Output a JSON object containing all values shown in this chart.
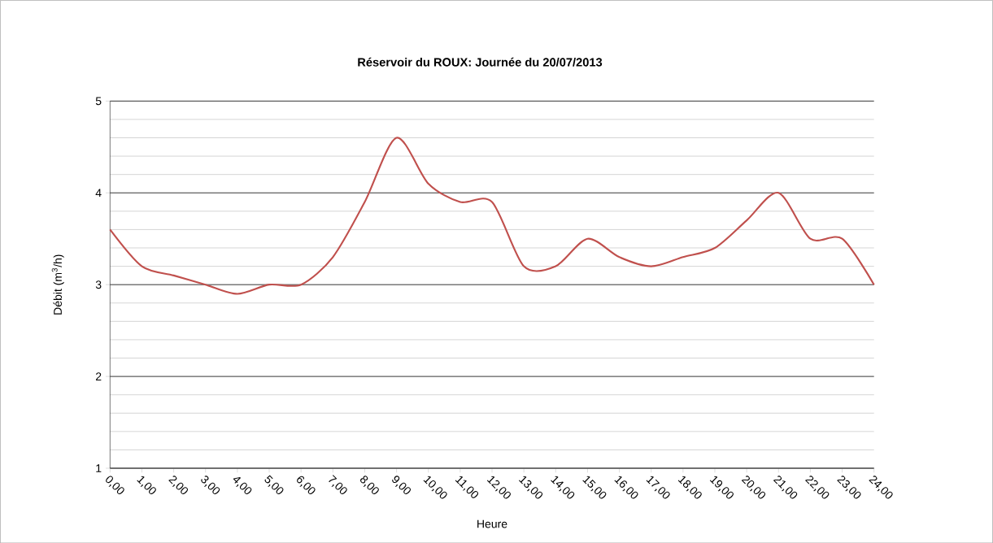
{
  "chart_data": {
    "type": "line",
    "title": "Réservoir du ROUX:  Journée du 20/07/2013",
    "xlabel": "Heure",
    "ylabel": "Débit (m$^{3}$/h)",
    "x": [
      0,
      1,
      2,
      3,
      4,
      5,
      6,
      7,
      8,
      9,
      10,
      11,
      12,
      13,
      14,
      15,
      16,
      17,
      18,
      19,
      20,
      21,
      22,
      23,
      24
    ],
    "series": [
      {
        "color": "#c0504d",
        "values": [
          3.6,
          3.2,
          3.1,
          3.0,
          2.9,
          3.0,
          3.0,
          3.3,
          3.9,
          4.6,
          4.1,
          3.9,
          3.9,
          3.2,
          3.2,
          3.5,
          3.3,
          3.2,
          3.3,
          3.4,
          3.7,
          4.0,
          3.5,
          3.5,
          3.0
        ]
      }
    ],
    "xlim": [
      0,
      24
    ],
    "ylim": [
      1,
      5
    ],
    "xticks": [
      {
        "value": 0,
        "label": "0,00"
      },
      {
        "value": 1,
        "label": "1,00"
      },
      {
        "value": 2,
        "label": "2,00"
      },
      {
        "value": 3,
        "label": "3,00"
      },
      {
        "value": 4,
        "label": "4,00"
      },
      {
        "value": 5,
        "label": "5,00"
      },
      {
        "value": 6,
        "label": "6,00"
      },
      {
        "value": 7,
        "label": "7,00"
      },
      {
        "value": 8,
        "label": "8,00"
      },
      {
        "value": 9,
        "label": "9,00"
      },
      {
        "value": 10,
        "label": "10,00"
      },
      {
        "value": 11,
        "label": "11,00"
      },
      {
        "value": 12,
        "label": "12,00"
      },
      {
        "value": 13,
        "label": "13,00"
      },
      {
        "value": 14,
        "label": "14,00"
      },
      {
        "value": 15,
        "label": "15,00"
      },
      {
        "value": 16,
        "label": "16,00"
      },
      {
        "value": 17,
        "label": "17,00"
      },
      {
        "value": 18,
        "label": "18,00"
      },
      {
        "value": 19,
        "label": "19,00"
      },
      {
        "value": 20,
        "label": "20,00"
      },
      {
        "value": 21,
        "label": "21,00"
      },
      {
        "value": 22,
        "label": "22,00"
      },
      {
        "value": 23,
        "label": "23,00"
      },
      {
        "value": 24,
        "label": "24,00"
      }
    ],
    "yticks": [
      1,
      2,
      3,
      4,
      5
    ],
    "grid": "y",
    "marker": "none",
    "line_style": "solid"
  }
}
